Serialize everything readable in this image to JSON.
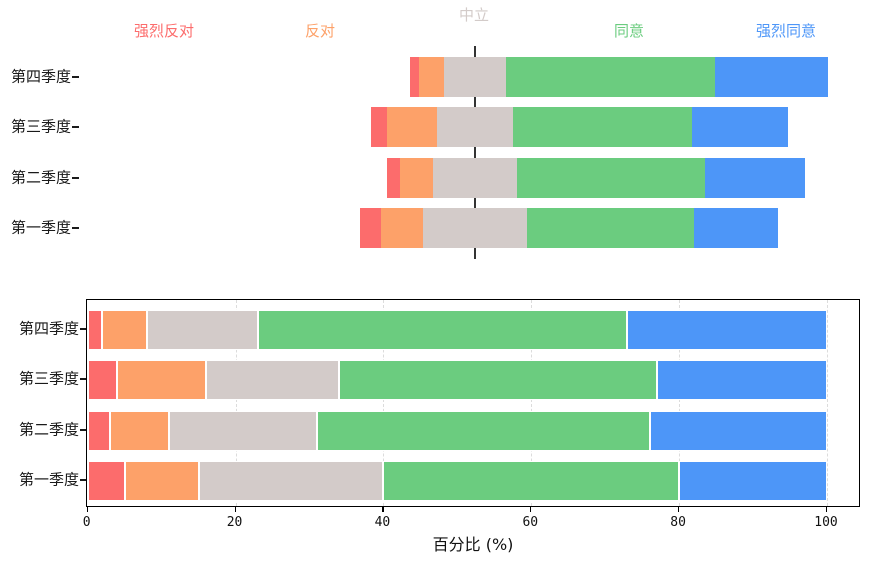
{
  "figure": {
    "background": "#ffffff",
    "description_labels": {
      "neutral_header": "中立"
    }
  },
  "colors": {
    "strongly_disagree": "#fc6c6c",
    "disagree": "#fda169",
    "neutral": "#d3cbc9",
    "agree": "#6bcc7f",
    "strongly_agree": "#4d96f8",
    "center_line": "#333333",
    "gridline": "#dcdcdc",
    "frame": "#000000",
    "text": "#1a1a1a"
  },
  "chart_data": [
    {
      "type": "bar",
      "variant": "diverging-stacked-horizontal",
      "categories": [
        "第四季度",
        "第三季度",
        "第二季度",
        "第一季度"
      ],
      "series": [
        {
          "name": "强烈反对",
          "color": "#fc6c6c",
          "values": [
            2,
            4,
            3,
            5
          ]
        },
        {
          "name": "反对",
          "color": "#fda169",
          "values": [
            6,
            12,
            8,
            10
          ]
        },
        {
          "name": "中立",
          "color": "#d3cbc9",
          "values": [
            15,
            18,
            20,
            25
          ]
        },
        {
          "name": "同意",
          "color": "#6bcc7f",
          "values": [
            50,
            43,
            45,
            40
          ]
        },
        {
          "name": "强烈同意",
          "color": "#4d96f8",
          "values": [
            27,
            23,
            24,
            20
          ]
        }
      ],
      "center_series": "中立",
      "legend_position": "top",
      "unit": "percent",
      "grid": "off",
      "title": "",
      "xlabel": "",
      "ylabel": ""
    },
    {
      "type": "bar",
      "variant": "stacked-horizontal",
      "categories": [
        "第四季度",
        "第三季度",
        "第二季度",
        "第一季度"
      ],
      "series": [
        {
          "name": "强烈反对",
          "color": "#fc6c6c",
          "values": [
            2,
            4,
            3,
            5
          ]
        },
        {
          "name": "反对",
          "color": "#fda169",
          "values": [
            6,
            12,
            8,
            10
          ]
        },
        {
          "name": "中立",
          "color": "#d3cbc9",
          "values": [
            15,
            18,
            20,
            25
          ]
        },
        {
          "name": "同意",
          "color": "#6bcc7f",
          "values": [
            50,
            43,
            45,
            40
          ]
        },
        {
          "name": "强烈同意",
          "color": "#4d96f8",
          "values": [
            27,
            23,
            24,
            20
          ]
        }
      ],
      "xlabel": "百分比 (%)",
      "ylabel": "",
      "title": "",
      "xticks": [
        0,
        20,
        40,
        60,
        80,
        100
      ],
      "xlim": [
        0,
        104.6
      ],
      "grid": "dashed-vertical",
      "legend_position": "none"
    }
  ]
}
